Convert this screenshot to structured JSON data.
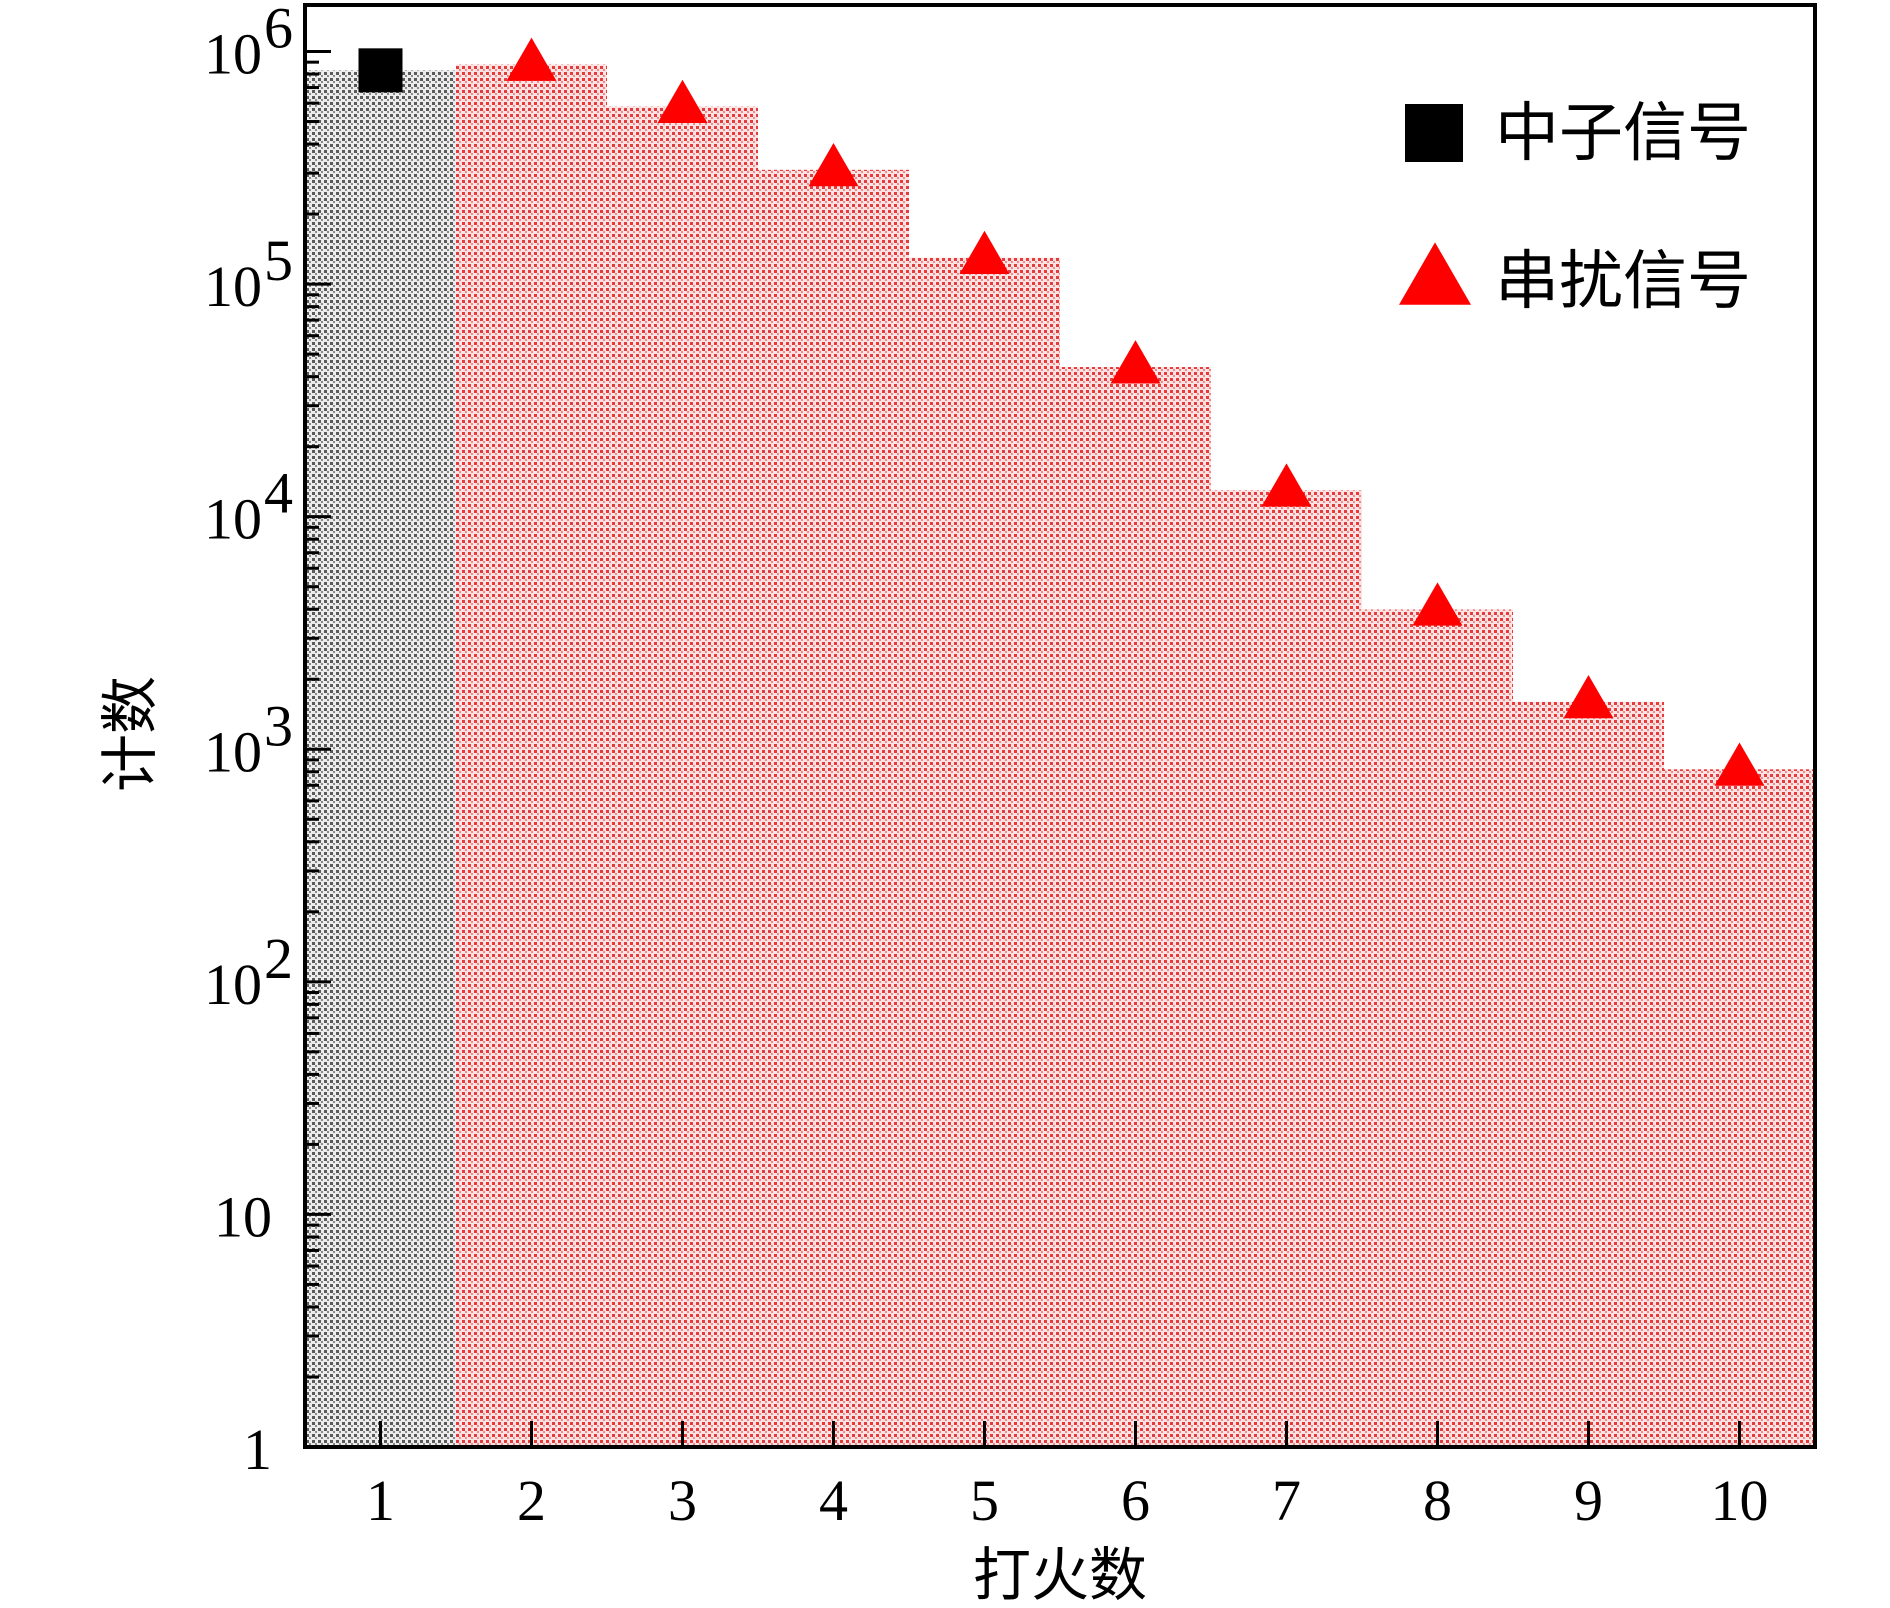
{
  "chart_data": {
    "type": "bar",
    "title": "",
    "xlabel": "打火数",
    "ylabel": "计数",
    "yscale": "log",
    "ylim": [
      1,
      1000000
    ],
    "xlim": [
      0.5,
      10.5
    ],
    "x": [
      1,
      2,
      3,
      4,
      5,
      6,
      7,
      8,
      9,
      10
    ],
    "x_tick_labels": [
      "1",
      "2",
      "3",
      "4",
      "5",
      "6",
      "7",
      "8",
      "9",
      "10"
    ],
    "y_ticks": [
      {
        "value": 1,
        "base": "1",
        "exp": ""
      },
      {
        "value": 10,
        "base": "10",
        "exp": ""
      },
      {
        "value": 100,
        "base": "10",
        "exp": "2"
      },
      {
        "value": 1000,
        "base": "10",
        "exp": "3"
      },
      {
        "value": 10000,
        "base": "10",
        "exp": "4"
      },
      {
        "value": 100000,
        "base": "10",
        "exp": "5"
      },
      {
        "value": 1000000,
        "base": "10",
        "exp": "6"
      }
    ],
    "grid": false,
    "legend_position": "top-right",
    "series": [
      {
        "name": "中子信号",
        "marker": "square",
        "color": "#000000",
        "fill_color": "#9a9a9a",
        "points": [
          {
            "x": 1,
            "y": 830000
          }
        ]
      },
      {
        "name": "串扰信号",
        "marker": "triangle",
        "color": "#ff0000",
        "fill_color": "#f26a6a",
        "points": [
          {
            "x": 2,
            "y": 880000
          },
          {
            "x": 3,
            "y": 580000
          },
          {
            "x": 4,
            "y": 310000
          },
          {
            "x": 5,
            "y": 130000
          },
          {
            "x": 6,
            "y": 44000
          },
          {
            "x": 7,
            "y": 13000
          },
          {
            "x": 8,
            "y": 4000
          },
          {
            "x": 9,
            "y": 1600
          },
          {
            "x": 10,
            "y": 820
          }
        ]
      }
    ]
  }
}
